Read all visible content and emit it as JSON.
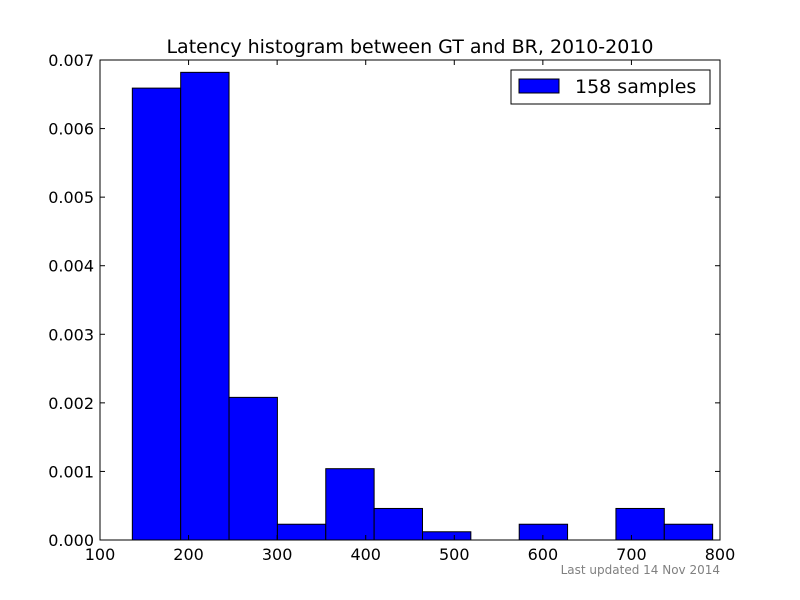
{
  "chart_data": {
    "type": "bar",
    "title": "Latency histogram between GT and BR, 2010-2010",
    "xlabel": "",
    "ylabel": "",
    "xlim": [
      100,
      800
    ],
    "ylim": [
      0,
      0.007
    ],
    "x_ticks": [
      100,
      200,
      300,
      400,
      500,
      600,
      700,
      800
    ],
    "x_tick_labels": [
      "100",
      "200",
      "300",
      "400",
      "500",
      "600",
      "700",
      "800"
    ],
    "y_ticks": [
      0,
      0.001,
      0.002,
      0.003,
      0.004,
      0.005,
      0.006,
      0.007
    ],
    "y_tick_labels": [
      "0.000",
      "0.001",
      "0.002",
      "0.003",
      "0.004",
      "0.005",
      "0.006",
      "0.007"
    ],
    "bins": [
      [
        136.5,
        191.1
      ],
      [
        191.1,
        245.7
      ],
      [
        245.7,
        300.3
      ],
      [
        300.3,
        354.9
      ],
      [
        354.9,
        409.5
      ],
      [
        409.5,
        464.1
      ],
      [
        464.1,
        518.7
      ],
      [
        518.7,
        573.3
      ],
      [
        573.3,
        627.9
      ],
      [
        627.9,
        682.5
      ],
      [
        682.5,
        737.1
      ],
      [
        737.1,
        791.7
      ]
    ],
    "values": [
      0.00659,
      0.00682,
      0.00208,
      0.00023,
      0.00104,
      0.00046,
      0.00012,
      0,
      0.00023,
      0,
      0.00046,
      0.00023
    ],
    "series": [
      {
        "name": "158 samples",
        "color": "#0000ff"
      }
    ],
    "legend_position": "top-right",
    "grid": false,
    "bar_color": "#0000ff",
    "edge_color": "#000000"
  },
  "footer": {
    "text": "Last updated 14 Nov 2014"
  }
}
